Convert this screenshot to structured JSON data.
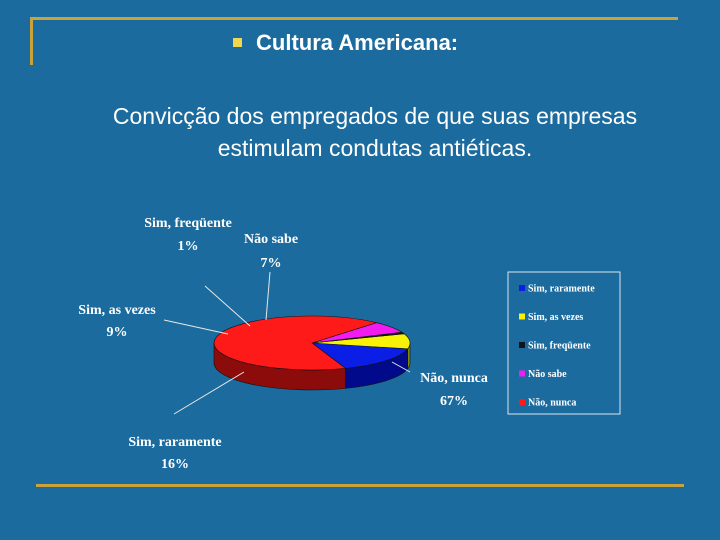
{
  "slide": {
    "title": "Cultura Americana:",
    "subtitle_lines": [
      "Convicção dos empregados de que suas empresas",
      "estimulam condutas antiéticas."
    ]
  },
  "colors": {
    "background": "#1b6b9e",
    "frame": "#c9a23a",
    "bullet": "#f2d64b"
  },
  "chart_data": {
    "type": "pie",
    "style": "3d",
    "legend": "right",
    "slices": [
      {
        "name": "Sim, raramente",
        "value": 16,
        "label": "Sim, raramente",
        "pct_label": "16%",
        "color": "#0a1ee6",
        "side_color": "#000a8a"
      },
      {
        "name": "Sim, as vezes",
        "value": 9,
        "label": "Sim, as vezes",
        "pct_label": "9%",
        "color": "#f7f208",
        "side_color": "#8a8700"
      },
      {
        "name": "Sim, freqüente",
        "value": 1,
        "label": "Sim, freqüente",
        "pct_label": "1%",
        "color": "#141414",
        "side_color": "#000000"
      },
      {
        "name": "Não sabe",
        "value": 7,
        "label": "Não sabe",
        "pct_label": "7%",
        "color": "#f21cf0",
        "side_color": "#8a0f88"
      },
      {
        "name": "Não, nunca",
        "value": 67,
        "label": "Não, nunca",
        "pct_label": "67%",
        "color": "#ff1a1a",
        "side_color": "#8c0c0c"
      }
    ]
  }
}
